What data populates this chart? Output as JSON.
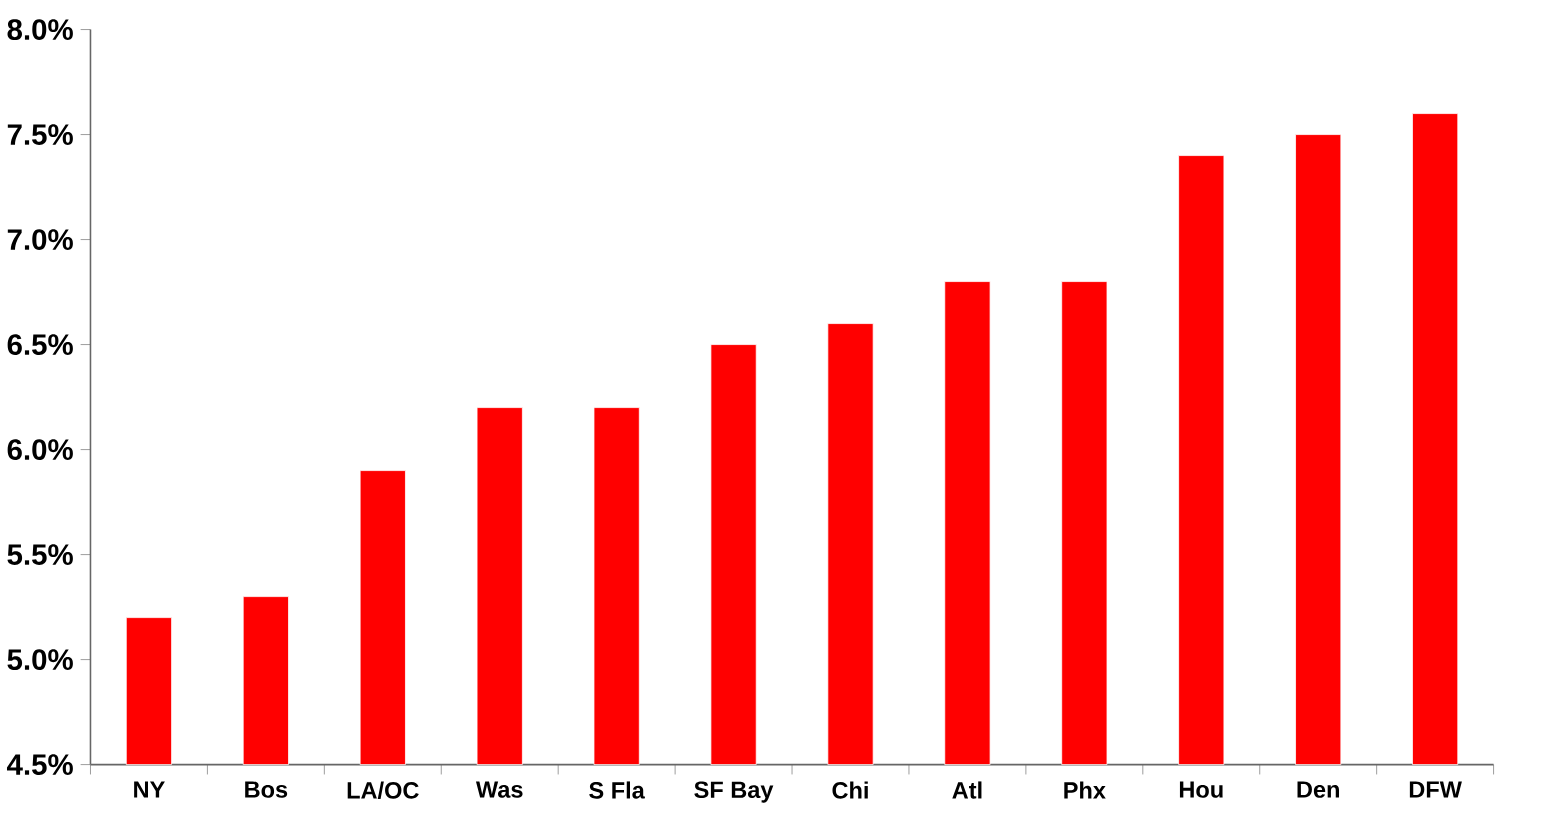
{
  "chart_data": {
    "type": "bar",
    "categories": [
      "NY",
      "Bos",
      "LA/OC",
      "Was",
      "S Fla",
      "SF Bay",
      "Chi",
      "Atl",
      "Phx",
      "Hou",
      "Den",
      "DFW"
    ],
    "values": [
      5.2,
      5.3,
      5.9,
      6.2,
      6.2,
      6.5,
      6.6,
      6.8,
      6.8,
      7.4,
      7.5,
      7.6
    ],
    "color": "#ff0000",
    "ylim": [
      4.5,
      8.0
    ],
    "yticks": [
      {
        "value": 4.5,
        "label": "4.5%"
      },
      {
        "value": 5.0,
        "label": "5.0%"
      },
      {
        "value": 5.5,
        "label": "5.5%"
      },
      {
        "value": 6.0,
        "label": "6.0%"
      },
      {
        "value": 6.5,
        "label": "6.5%"
      },
      {
        "value": 7.0,
        "label": "7.0%"
      },
      {
        "value": 7.5,
        "label": "7.5%"
      },
      {
        "value": 8.0,
        "label": "8.0%"
      }
    ],
    "grid": false
  }
}
